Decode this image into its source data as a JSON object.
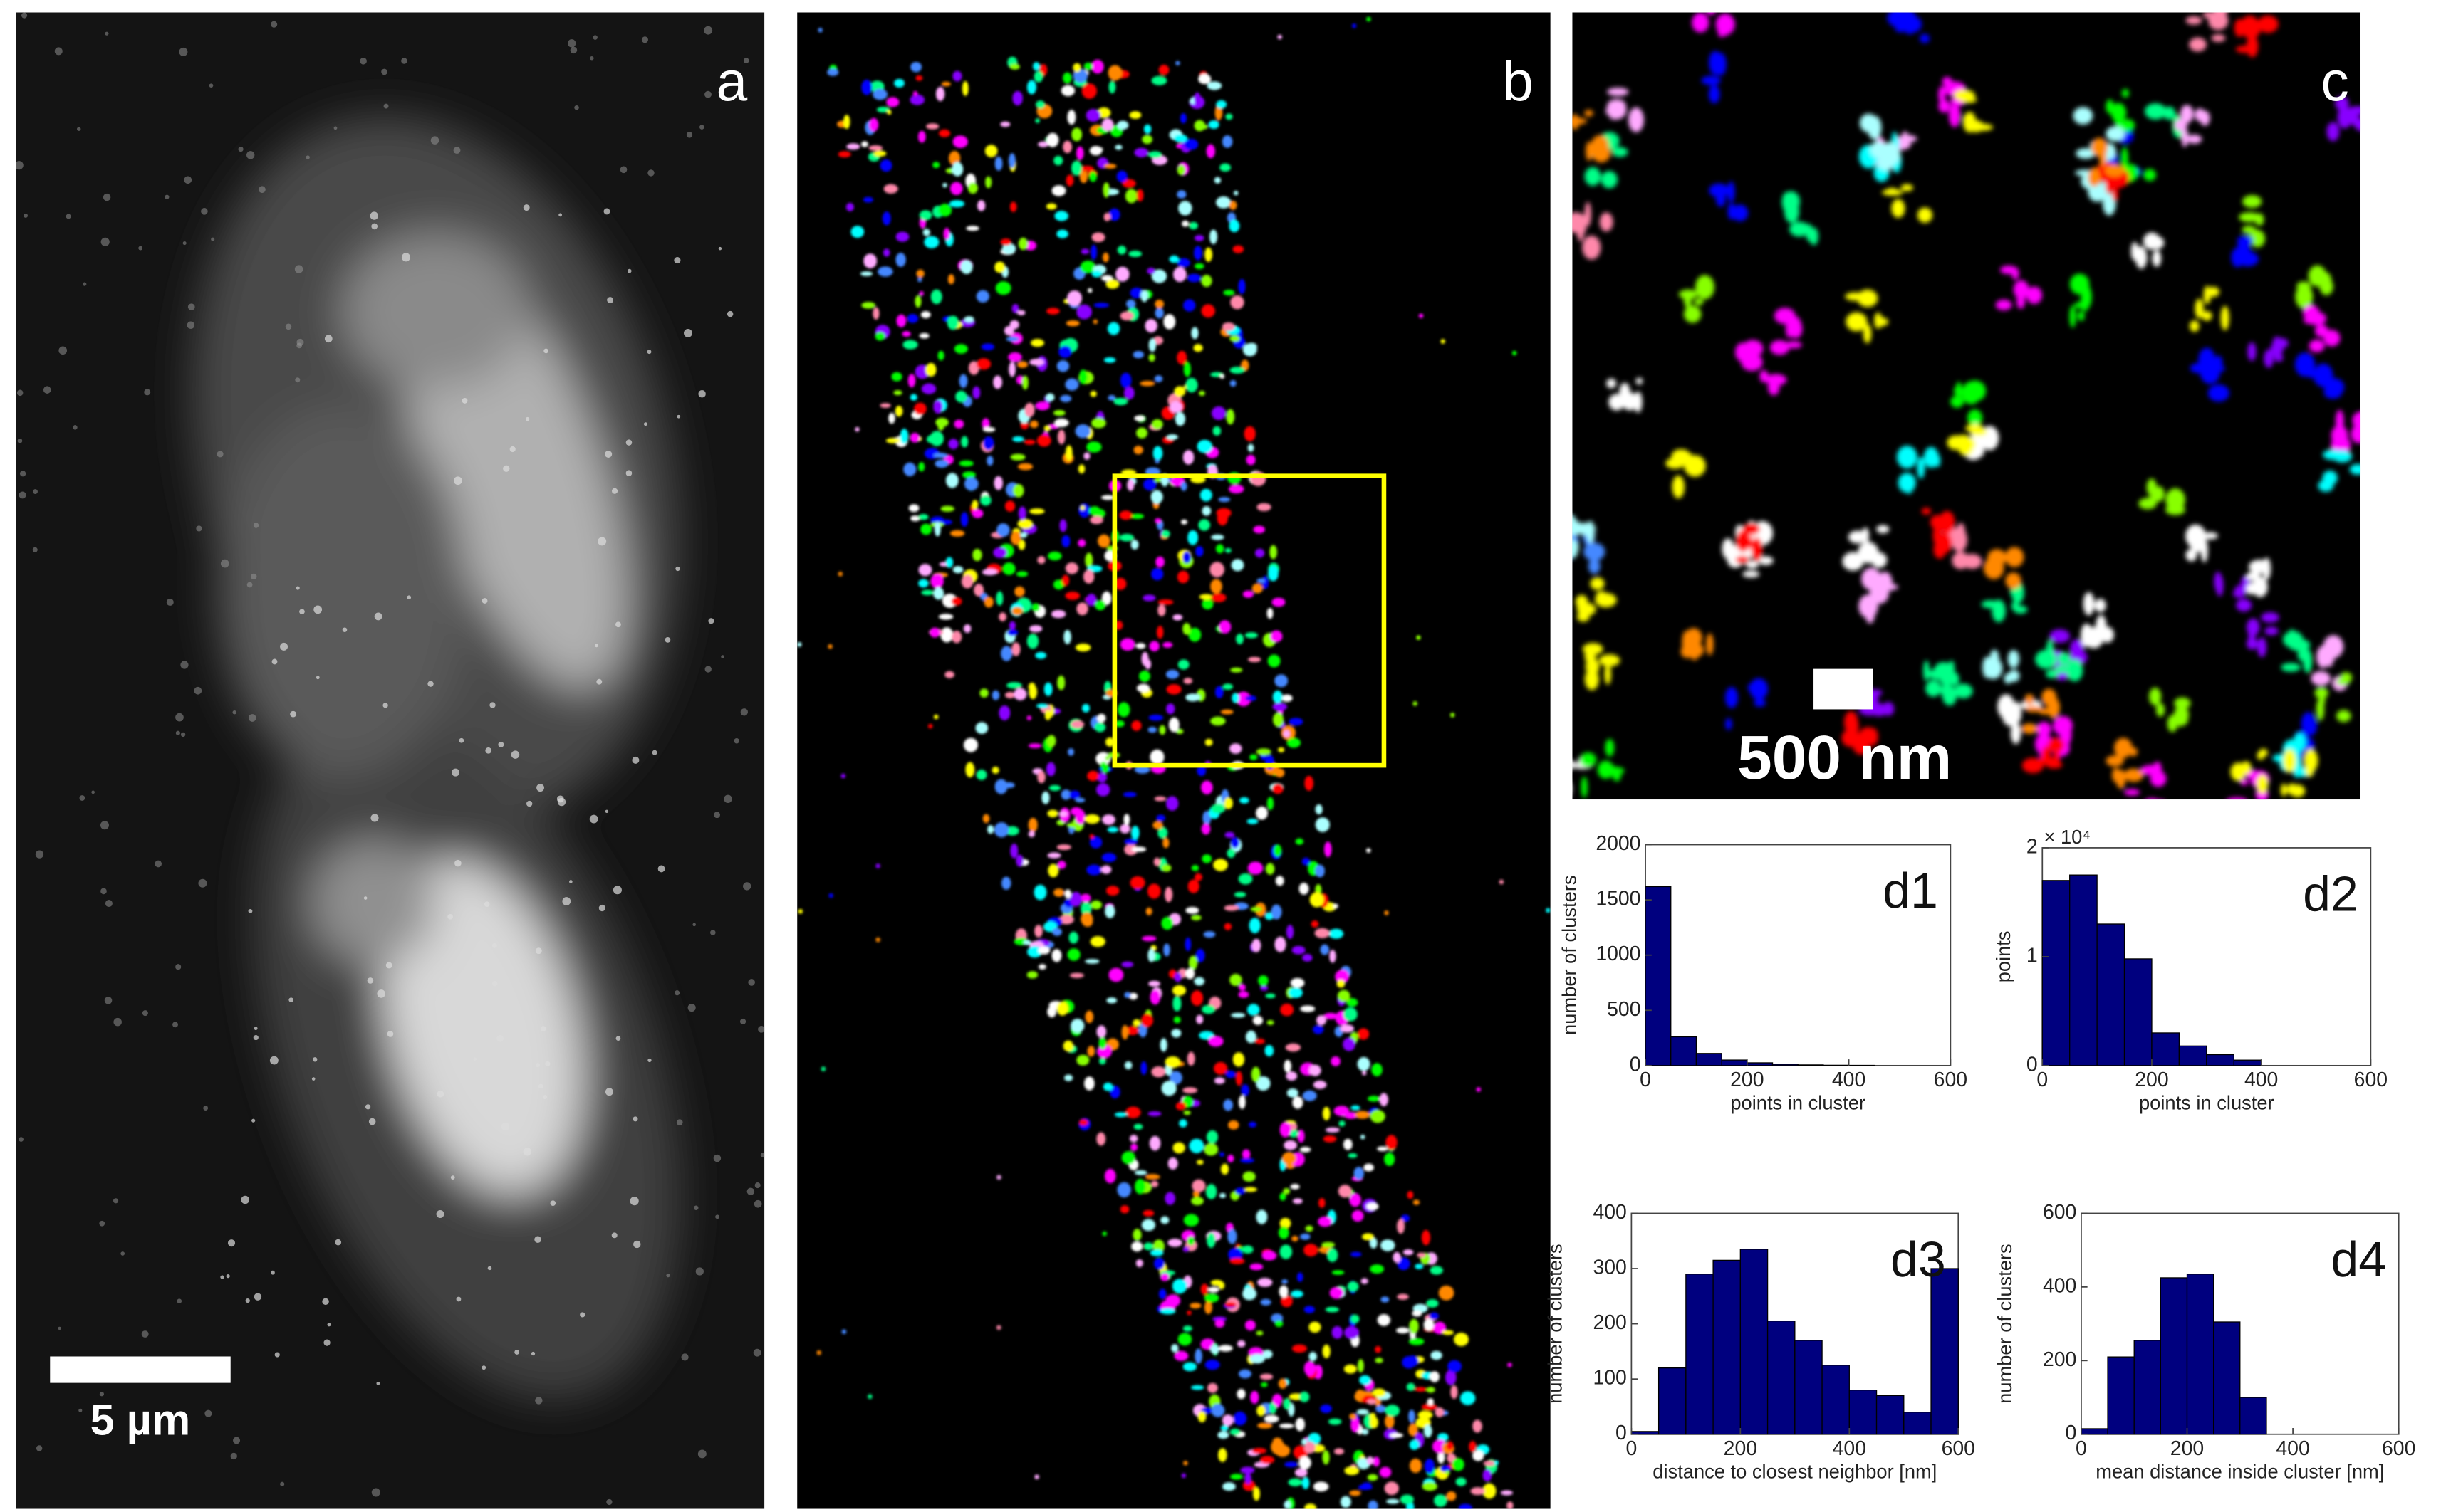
{
  "figure": {
    "panel_labels": [
      "a",
      "b",
      "c"
    ],
    "scale_bars": [
      "5 µm",
      "500 nm"
    ]
  },
  "chart_data": [
    {
      "type": "histogram",
      "title": "d1",
      "x_label": "points in cluster",
      "y_label": "number of clusters",
      "bins": [
        0,
        50,
        100,
        150,
        200,
        250,
        300,
        350,
        400,
        450
      ],
      "values": [
        1620,
        260,
        110,
        50,
        25,
        12,
        6,
        3,
        2
      ],
      "color": "#00007f",
      "xlim": [
        0,
        600
      ],
      "xticks": [
        0,
        200,
        400,
        600
      ],
      "ylim": [
        0,
        2000
      ],
      "yticks": [
        0,
        500,
        1000,
        1500,
        2000
      ]
    },
    {
      "type": "histogram",
      "title": "d2",
      "x_label": "points in cluster",
      "y_label": "points",
      "y_multiplier": "× 10⁴",
      "bins": [
        0,
        50,
        100,
        150,
        200,
        250,
        300,
        350,
        400
      ],
      "values": [
        1.7,
        1.75,
        1.3,
        0.98,
        0.3,
        0.18,
        0.1,
        0.05
      ],
      "color": "#00007f",
      "xlim": [
        0,
        600
      ],
      "xticks": [
        0,
        200,
        400,
        600
      ],
      "ylim": [
        0,
        2
      ],
      "yticks": [
        0,
        1,
        2
      ]
    },
    {
      "type": "histogram",
      "title": "d3",
      "x_label": "distance to closest neighbor [nm]",
      "y_label": "number of clusters",
      "bins": [
        0,
        50,
        100,
        150,
        200,
        250,
        300,
        350,
        400,
        450,
        500,
        550,
        600
      ],
      "values": [
        5,
        120,
        290,
        315,
        335,
        205,
        170,
        125,
        80,
        70,
        40,
        300
      ],
      "color": "#00007f",
      "xlim": [
        0,
        600
      ],
      "xticks": [
        0,
        200,
        400,
        600
      ],
      "ylim": [
        0,
        400
      ],
      "yticks": [
        0,
        100,
        200,
        300,
        400
      ]
    },
    {
      "type": "histogram",
      "title": "d4",
      "x_label": "mean distance inside cluster [nm]",
      "y_label": "number of clusters",
      "bins": [
        0,
        50,
        100,
        150,
        200,
        250,
        300,
        350
      ],
      "values": [
        15,
        210,
        255,
        425,
        435,
        305,
        100
      ],
      "color": "#00007f",
      "xlim": [
        0,
        600
      ],
      "xticks": [
        0,
        200,
        400,
        600
      ],
      "ylim": [
        0,
        600
      ],
      "yticks": [
        0,
        200,
        400,
        600
      ]
    }
  ]
}
